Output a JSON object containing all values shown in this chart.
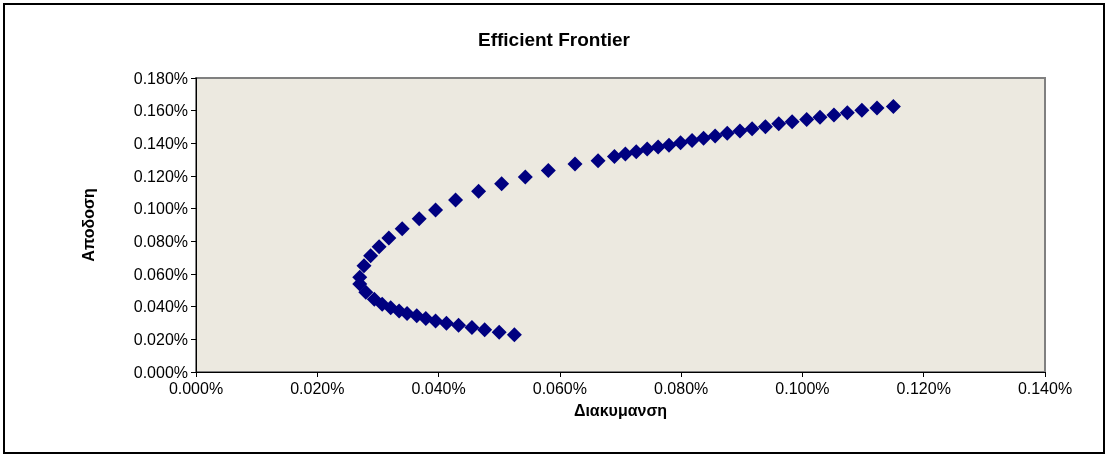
{
  "chart_data": {
    "type": "scatter",
    "title": "Efficient Frontier",
    "xlabel": "Διακυμανση",
    "ylabel": "Αποδοση",
    "x": [
      0.0525,
      0.05,
      0.0476,
      0.0455,
      0.0433,
      0.0413,
      0.0395,
      0.0379,
      0.0364,
      0.0348,
      0.0335,
      0.0321,
      0.0307,
      0.0294,
      0.028,
      0.027,
      0.027,
      0.0277,
      0.0288,
      0.0302,
      0.0318,
      0.034,
      0.0368,
      0.0395,
      0.0428,
      0.0466,
      0.0504,
      0.0543,
      0.0581,
      0.0625,
      0.0663,
      0.069,
      0.0708,
      0.0726,
      0.0744,
      0.0762,
      0.078,
      0.0799,
      0.0818,
      0.0837,
      0.0856,
      0.0876,
      0.0897,
      0.0917,
      0.0939,
      0.0961,
      0.0983,
      0.1007,
      0.1029,
      0.1052,
      0.1074,
      0.1098,
      0.1123,
      0.115
    ],
    "series": [
      {
        "color": "#000080",
        "values": [
          0.0228,
          0.0243,
          0.0258,
          0.0272,
          0.0286,
          0.0298,
          0.0312,
          0.0328,
          0.0344,
          0.0358,
          0.0374,
          0.0394,
          0.0415,
          0.0445,
          0.0489,
          0.0539,
          0.058,
          0.065,
          0.0711,
          0.0767,
          0.0821,
          0.0877,
          0.0938,
          0.0992,
          0.1053,
          0.1107,
          0.1153,
          0.1194,
          0.1234,
          0.1274,
          0.1294,
          0.132,
          0.1335,
          0.1349,
          0.1365,
          0.1377,
          0.1389,
          0.1403,
          0.1417,
          0.1431,
          0.1445,
          0.1461,
          0.1475,
          0.149,
          0.1502,
          0.152,
          0.1532,
          0.1546,
          0.156,
          0.1574,
          0.1588,
          0.1602,
          0.1616,
          0.1626
        ]
      }
    ],
    "xlim": [
      0,
      0.14
    ],
    "ylim": [
      0,
      0.18
    ],
    "xticks": [
      {
        "value": 0,
        "label": "0.000%"
      },
      {
        "value": 0.02,
        "label": "0.020%"
      },
      {
        "value": 0.04,
        "label": "0.040%"
      },
      {
        "value": 0.06,
        "label": "0.060%"
      },
      {
        "value": 0.08,
        "label": "0.080%"
      },
      {
        "value": 0.1,
        "label": "0.100%"
      },
      {
        "value": 0.12,
        "label": "0.120%"
      },
      {
        "value": 0.14,
        "label": "0.140%"
      }
    ],
    "yticks": [
      {
        "value": 0,
        "label": "0.000%"
      },
      {
        "value": 0.02,
        "label": "0.020%"
      },
      {
        "value": 0.04,
        "label": "0.040%"
      },
      {
        "value": 0.06,
        "label": "0.060%"
      },
      {
        "value": 0.08,
        "label": "0.080%"
      },
      {
        "value": 0.1,
        "label": "0.100%"
      },
      {
        "value": 0.12,
        "label": "0.120%"
      },
      {
        "value": 0.14,
        "label": "0.140%"
      },
      {
        "value": 0.16,
        "label": "0.160%"
      },
      {
        "value": 0.18,
        "label": "0.180%"
      }
    ],
    "grid": false,
    "marker": "diamond"
  }
}
